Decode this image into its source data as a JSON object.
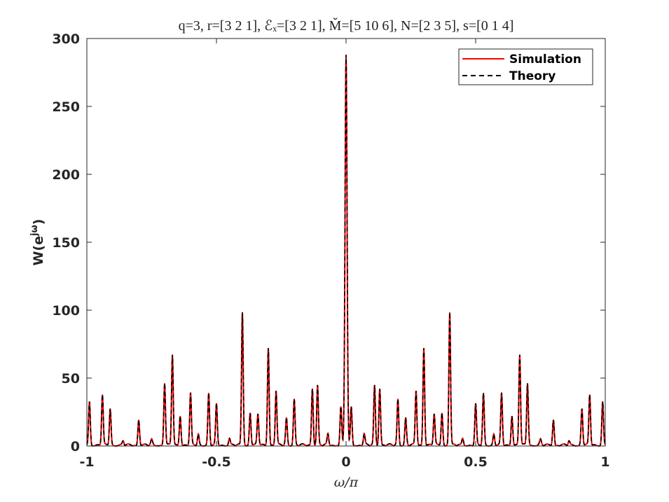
{
  "chart_data": {
    "type": "line",
    "title": "q=3, r=[3 2 1], ℰₓ=[3 2 1], M̆=[5 10 6], N=[2 3 5], s=[0 1 4]",
    "xlabel": "ω/π",
    "ylabel": "W(e",
    "ylabel_sup": "jω",
    "ylabel_close": ")",
    "xlim": [
      -1,
      1
    ],
    "ylim": [
      0,
      300
    ],
    "xticks": [
      -1,
      -0.5,
      0,
      0.5,
      1
    ],
    "xtick_labels": [
      "-1",
      "-0.5",
      "0",
      "0.5",
      "1"
    ],
    "yticks": [
      0,
      50,
      100,
      150,
      200,
      250,
      300
    ],
    "ytick_labels": [
      "0",
      "50",
      "100",
      "150",
      "200",
      "250",
      "300"
    ],
    "legend_position": "top-right",
    "grid": false,
    "peaks": [
      {
        "x": 0.0,
        "y": 288
      },
      {
        "x": -0.4,
        "y": 98
      },
      {
        "x": 0.4,
        "y": 98
      },
      {
        "x": -0.3,
        "y": 72
      },
      {
        "x": 0.3,
        "y": 72
      },
      {
        "x": -0.67,
        "y": 67
      },
      {
        "x": 0.67,
        "y": 67
      },
      {
        "x": -0.7,
        "y": 46
      },
      {
        "x": 0.7,
        "y": 46
      },
      {
        "x": -0.11,
        "y": 44
      },
      {
        "x": 0.11,
        "y": 44
      },
      {
        "x": -0.13,
        "y": 42
      },
      {
        "x": 0.13,
        "y": 42
      },
      {
        "x": -0.27,
        "y": 40
      },
      {
        "x": 0.27,
        "y": 40
      },
      {
        "x": -0.94,
        "y": 37
      },
      {
        "x": 0.94,
        "y": 37
      },
      {
        "x": -0.6,
        "y": 38
      },
      {
        "x": 0.6,
        "y": 38
      },
      {
        "x": -0.53,
        "y": 38
      },
      {
        "x": 0.53,
        "y": 38
      },
      {
        "x": -0.2,
        "y": 34
      },
      {
        "x": 0.2,
        "y": 34
      },
      {
        "x": -0.99,
        "y": 32
      },
      {
        "x": 0.99,
        "y": 32
      },
      {
        "x": -0.5,
        "y": 30
      },
      {
        "x": 0.5,
        "y": 30
      },
      {
        "x": -0.91,
        "y": 27
      },
      {
        "x": 0.91,
        "y": 27
      },
      {
        "x": -0.02,
        "y": 28
      },
      {
        "x": 0.02,
        "y": 28
      },
      {
        "x": -0.37,
        "y": 24
      },
      {
        "x": 0.37,
        "y": 24
      },
      {
        "x": -0.34,
        "y": 23
      },
      {
        "x": 0.34,
        "y": 23
      },
      {
        "x": -0.64,
        "y": 22
      },
      {
        "x": 0.64,
        "y": 22
      },
      {
        "x": -0.8,
        "y": 19
      },
      {
        "x": 0.8,
        "y": 19
      },
      {
        "x": -0.23,
        "y": 20
      },
      {
        "x": 0.23,
        "y": 20
      },
      {
        "x": -0.57,
        "y": 8
      },
      {
        "x": 0.57,
        "y": 8
      },
      {
        "x": -0.07,
        "y": 8
      },
      {
        "x": 0.07,
        "y": 8
      },
      {
        "x": -0.45,
        "y": 5
      },
      {
        "x": 0.45,
        "y": 5
      },
      {
        "x": -0.75,
        "y": 4
      },
      {
        "x": 0.75,
        "y": 4
      },
      {
        "x": -0.86,
        "y": 3
      },
      {
        "x": 0.86,
        "y": 3
      }
    ],
    "series": [
      {
        "name": "Simulation",
        "color": "#ff0000",
        "dash": "solid"
      },
      {
        "name": "Theory",
        "color": "#000000",
        "dash": "dashed"
      }
    ]
  }
}
